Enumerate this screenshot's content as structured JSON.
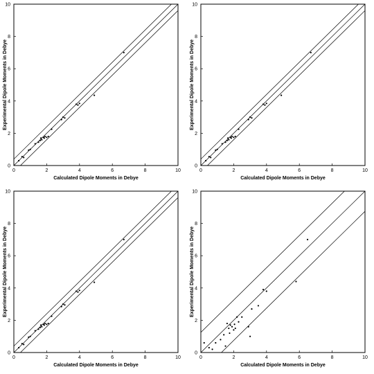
{
  "chart_data": [
    {
      "type": "scatter",
      "panel": "top-left",
      "xlabel": "Calculated Dipole Moments in Debye",
      "ylabel": "Experimental Dipole Moments in Debye",
      "xlim": [
        0,
        10
      ],
      "ylim": [
        0,
        10
      ],
      "xticks": [
        0,
        2,
        4,
        6,
        8,
        10
      ],
      "yticks": [
        0,
        2,
        4,
        6,
        8,
        10
      ],
      "fit": {
        "slope": 1.0,
        "intercept": 0.0
      },
      "bands": [
        -0.4,
        0.4
      ],
      "points": [
        [
          0.3,
          0.3
        ],
        [
          0.5,
          0.55
        ],
        [
          0.6,
          0.5
        ],
        [
          0.9,
          0.95
        ],
        [
          1.0,
          1.0
        ],
        [
          1.3,
          1.35
        ],
        [
          1.5,
          1.45
        ],
        [
          1.6,
          1.55
        ],
        [
          1.65,
          1.7
        ],
        [
          1.7,
          1.6
        ],
        [
          1.8,
          1.75
        ],
        [
          1.85,
          1.7
        ],
        [
          1.9,
          1.8
        ],
        [
          2.0,
          1.75
        ],
        [
          2.1,
          1.8
        ],
        [
          2.3,
          2.25
        ],
        [
          2.9,
          2.85
        ],
        [
          3.0,
          3.0
        ],
        [
          3.1,
          2.95
        ],
        [
          3.8,
          3.8
        ],
        [
          3.9,
          3.75
        ],
        [
          4.0,
          3.85
        ],
        [
          4.9,
          4.35
        ],
        [
          6.7,
          7.0
        ]
      ]
    },
    {
      "type": "scatter",
      "panel": "top-right",
      "xlabel": "Calculated Dipole Moments in Debye",
      "ylabel": "Experimental Dipole Moments in Debye",
      "xlim": [
        0,
        10
      ],
      "ylim": [
        0,
        10
      ],
      "xticks": [
        0,
        2,
        4,
        6,
        8,
        10
      ],
      "yticks": [
        0,
        2,
        4,
        6,
        8,
        10
      ],
      "fit": {
        "slope": 1.0,
        "intercept": 0.0
      },
      "bands": [
        -0.4,
        0.4
      ],
      "points": [
        [
          0.3,
          0.3
        ],
        [
          0.5,
          0.55
        ],
        [
          0.6,
          0.5
        ],
        [
          0.9,
          0.95
        ],
        [
          1.0,
          1.0
        ],
        [
          1.3,
          1.35
        ],
        [
          1.5,
          1.45
        ],
        [
          1.6,
          1.55
        ],
        [
          1.65,
          1.7
        ],
        [
          1.7,
          1.6
        ],
        [
          1.8,
          1.75
        ],
        [
          1.85,
          1.7
        ],
        [
          1.9,
          1.8
        ],
        [
          2.0,
          1.75
        ],
        [
          2.1,
          1.8
        ],
        [
          2.3,
          2.25
        ],
        [
          2.9,
          2.85
        ],
        [
          3.0,
          3.0
        ],
        [
          3.1,
          2.95
        ],
        [
          3.8,
          3.8
        ],
        [
          3.9,
          3.75
        ],
        [
          4.0,
          3.85
        ],
        [
          4.9,
          4.35
        ],
        [
          6.7,
          7.0
        ]
      ]
    },
    {
      "type": "scatter",
      "panel": "bottom-left",
      "xlabel": "Calculated Dipole Moments in Debye",
      "ylabel": "Experimental Dipole Moments in Debye",
      "xlim": [
        0,
        10
      ],
      "ylim": [
        0,
        10
      ],
      "xticks": [
        0,
        2,
        4,
        6,
        8,
        10
      ],
      "yticks": [
        0,
        2,
        4,
        6,
        8,
        10
      ],
      "fit": {
        "slope": 1.0,
        "intercept": 0.0
      },
      "bands": [
        -0.4,
        0.4
      ],
      "points": [
        [
          0.3,
          0.3
        ],
        [
          0.5,
          0.55
        ],
        [
          0.6,
          0.5
        ],
        [
          0.9,
          0.95
        ],
        [
          1.0,
          1.0
        ],
        [
          1.3,
          1.35
        ],
        [
          1.5,
          1.45
        ],
        [
          1.6,
          1.55
        ],
        [
          1.65,
          1.7
        ],
        [
          1.7,
          1.6
        ],
        [
          1.8,
          1.75
        ],
        [
          1.85,
          1.7
        ],
        [
          1.9,
          1.8
        ],
        [
          2.0,
          1.75
        ],
        [
          2.1,
          1.8
        ],
        [
          2.3,
          2.25
        ],
        [
          2.9,
          2.85
        ],
        [
          3.0,
          3.0
        ],
        [
          3.1,
          2.95
        ],
        [
          3.8,
          3.8
        ],
        [
          3.9,
          3.75
        ],
        [
          4.0,
          3.85
        ],
        [
          4.9,
          4.35
        ],
        [
          6.7,
          7.0
        ]
      ]
    },
    {
      "type": "scatter",
      "panel": "bottom-right",
      "xlabel": "Calculated Dipole Moments in Debye",
      "ylabel": "Experimental Dipole Moments in Debye",
      "xlim": [
        0,
        10
      ],
      "ylim": [
        0,
        10
      ],
      "xticks": [
        0,
        2,
        4,
        6,
        8,
        10
      ],
      "yticks": [
        0,
        2,
        4,
        6,
        8,
        10
      ],
      "fit": {
        "slope": 1.0,
        "intercept": 0.0
      },
      "bands": [
        -1.25,
        1.25
      ],
      "points": [
        [
          0.2,
          0.6
        ],
        [
          0.5,
          0.3
        ],
        [
          0.7,
          0.2
        ],
        [
          0.9,
          0.6
        ],
        [
          1.2,
          0.8
        ],
        [
          1.4,
          1.1
        ],
        [
          1.5,
          0.4
        ],
        [
          1.6,
          1.8
        ],
        [
          1.7,
          1.5
        ],
        [
          1.75,
          1.2
        ],
        [
          1.8,
          1.7
        ],
        [
          1.9,
          1.6
        ],
        [
          2.0,
          1.4
        ],
        [
          2.05,
          1.75
        ],
        [
          2.1,
          1.5
        ],
        [
          2.2,
          2.2
        ],
        [
          2.3,
          1.9
        ],
        [
          2.5,
          2.2
        ],
        [
          2.9,
          1.6
        ],
        [
          3.0,
          1.0
        ],
        [
          3.1,
          2.7
        ],
        [
          3.5,
          2.9
        ],
        [
          3.8,
          3.9
        ],
        [
          4.0,
          3.8
        ],
        [
          5.8,
          4.4
        ],
        [
          6.5,
          7.0
        ]
      ]
    }
  ]
}
